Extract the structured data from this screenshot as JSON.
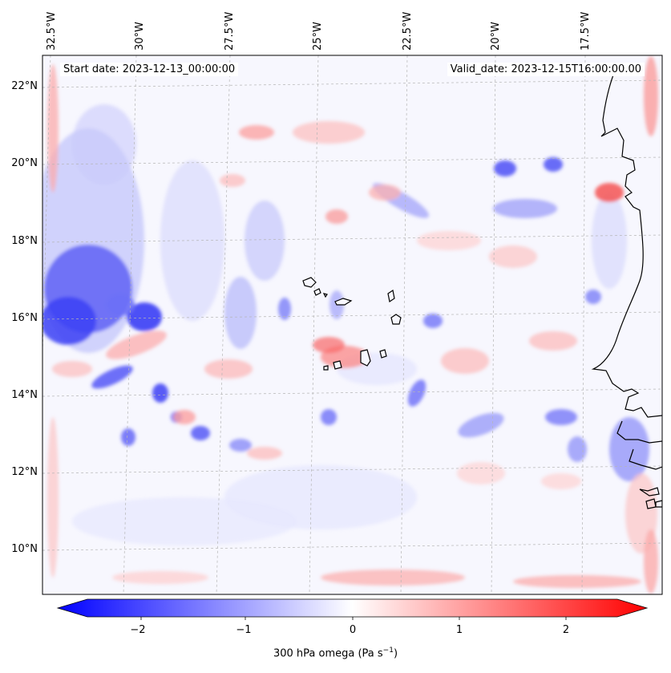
{
  "header": {
    "start_date": "Start date: 2023-12-13_00:00:00",
    "valid_date": "Valid_date: 2023-12-15T16:00:00.00"
  },
  "map": {
    "lon_labels": [
      "32.5°W",
      "30°W",
      "27.5°W",
      "25°W",
      "22.5°W",
      "20°W",
      "17.5°W"
    ],
    "lat_labels": [
      "22°N",
      "20°N",
      "18°N",
      "16°N",
      "14°N",
      "12°N",
      "10°N"
    ],
    "field": "300 hPa omega",
    "gridlines": true
  },
  "colorbar": {
    "label_text": "300 hPa omega (Pa s",
    "label_exp": "−1",
    "label_close": ")",
    "ticks": [
      "−2",
      "−1",
      "0",
      "1",
      "2"
    ],
    "range": [
      -2.6,
      2.6
    ],
    "cmap": "bwr",
    "colors": {
      "negative": "#0000ff",
      "zero": "#ffffff",
      "positive": "#ff0000"
    }
  }
}
